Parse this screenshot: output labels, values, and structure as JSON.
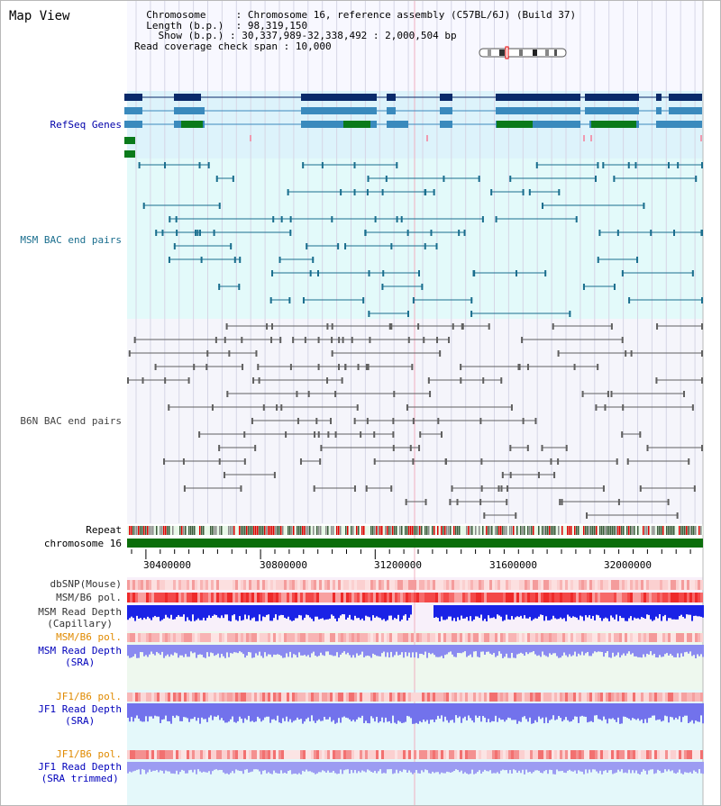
{
  "page": {
    "title": "Map View"
  },
  "info": {
    "chromosome_label": "Chromosome",
    "chromosome_value": "Chromosome 16, reference assembly (C57BL/6J) (Build 37)",
    "length_label": "Length (b.p.)",
    "length_value": "98,319,150",
    "show_label": "Show (b.p.)",
    "show_value": "30,337,989-32,338,492 : 2,000,504 bp",
    "coverage_label": "Read coverage check span",
    "coverage_value": "10,000"
  },
  "tracks": {
    "refseq": "RefSeq Genes",
    "msm_bac": "MSM BAC end pairs",
    "b6n_bac": "B6N BAC end pairs",
    "repeat": "Repeat",
    "chromosome": "chromosome 16",
    "dbsnp": "dbSNP(Mouse)",
    "msm_b6_pol": "MSM/B6 pol.",
    "msm_depth_cap_1": "MSM Read Depth",
    "msm_depth_cap_2": "(Capillary)",
    "msm_b6_pol_2": "MSM/B6 pol.",
    "msm_depth_sra_1": "MSM Read Depth",
    "msm_depth_sra_2": "(SRA)",
    "jf1_b6_pol": "JF1/B6 pol.",
    "jf1_depth_sra_1": "JF1 Read Depth",
    "jf1_depth_sra_2": "(SRA)",
    "jf1_b6_pol_2": "JF1/B6 pol.",
    "jf1_depth_trim_1": "JF1 Read Depth",
    "jf1_depth_trim_2": "(SRA trimmed)"
  },
  "axis": {
    "ticks": [
      "30400000",
      "30800000",
      "31200000",
      "31600000",
      "32000000"
    ]
  },
  "colors": {
    "refseq_label": "#0000aa",
    "msm_label": "#1a6e8e",
    "b6n_label": "#444444",
    "orange_label": "#e08a00",
    "blue_label": "#0000bb",
    "gene_dark": "#0a2a6a",
    "gene_mid": "#3a8abd",
    "gene_green": "#0a7a1a",
    "chromosome_bar": "#0b6e0b"
  }
}
